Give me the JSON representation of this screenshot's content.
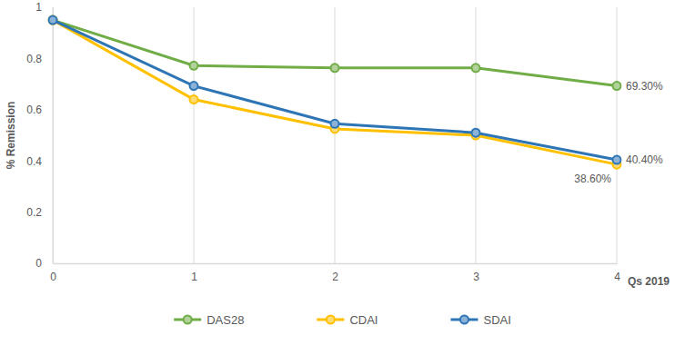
{
  "chart_data": {
    "type": "line",
    "x_label": "Qs 2019",
    "y_label": "% Remission",
    "x": [
      0,
      1,
      2,
      3,
      4
    ],
    "xlim": [
      0,
      4
    ],
    "xticks": [
      0,
      1,
      2,
      3,
      4
    ],
    "ylim": [
      0,
      1
    ],
    "yticks": [
      0,
      0.2,
      0.4,
      0.6,
      0.8,
      1
    ],
    "grid": "x",
    "legend": "bottom",
    "data_labels": true,
    "marker": "circle",
    "series": [
      {
        "name": "DAS28",
        "color": "#70ad47",
        "values": [
          0.95,
          0.772,
          0.763,
          0.763,
          0.693
        ],
        "value_labels": [
          null,
          null,
          null,
          null,
          "69.30%"
        ]
      },
      {
        "name": "CDAI",
        "color": "#ffc000",
        "values": [
          0.95,
          0.64,
          0.525,
          0.5,
          0.386
        ],
        "value_labels": [
          null,
          null,
          null,
          null,
          "38.60%"
        ]
      },
      {
        "name": "SDAI",
        "color": "#2e75b6",
        "values": [
          0.95,
          0.693,
          0.545,
          0.51,
          0.404
        ],
        "value_labels": [
          null,
          null,
          null,
          null,
          "40.40%"
        ]
      }
    ]
  }
}
